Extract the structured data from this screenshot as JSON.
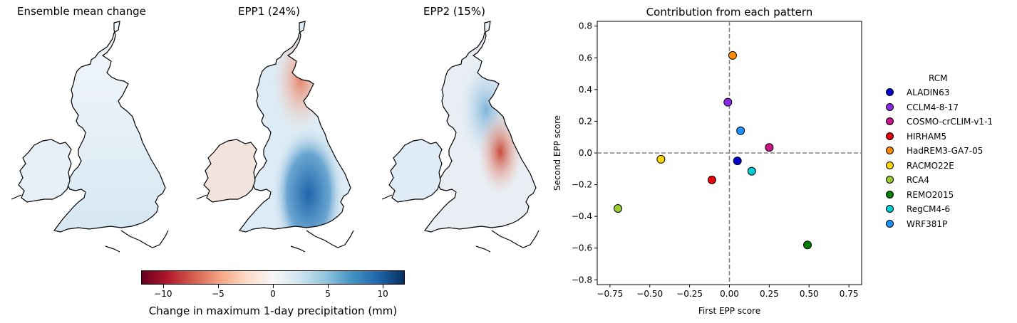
{
  "maps": [
    {
      "title": "Ensemble mean change",
      "variant": "mean"
    },
    {
      "title": "EPP1 (24%)",
      "variant": "epp1"
    },
    {
      "title": "EPP2 (15%)",
      "variant": "epp2"
    }
  ],
  "colorbar": {
    "label": "Change in maximum 1-day precipitation (mm)",
    "ticks": [
      "−10",
      "−5",
      "0",
      "5",
      "10"
    ],
    "tick_values": [
      -10,
      -5,
      0,
      5,
      10
    ],
    "range": [
      -12,
      12
    ],
    "colormap": "RdBu"
  },
  "legend": {
    "title": "RCM",
    "placement": "right"
  },
  "chart_data": [
    {
      "type": "scatter",
      "title": "Contribution from each pattern",
      "xlabel": "First EPP score",
      "ylabel": "Second EPP score",
      "xlim": [
        -0.83,
        0.83
      ],
      "ylim": [
        -0.83,
        0.83
      ],
      "xticks": [
        -0.75,
        -0.5,
        -0.25,
        0.0,
        0.25,
        0.5,
        0.75
      ],
      "xtick_labels": [
        "−0.75",
        "−0.50",
        "−0.25",
        "0.00",
        "0.25",
        "0.50",
        "0.75"
      ],
      "yticks": [
        -0.8,
        -0.6,
        -0.4,
        -0.2,
        0.0,
        0.2,
        0.4,
        0.6,
        0.8
      ],
      "ytick_labels": [
        "−0.8",
        "−0.6",
        "−0.4",
        "−0.2",
        "0.0",
        "0.2",
        "0.4",
        "0.6",
        "0.8"
      ],
      "reference_lines": {
        "x": 0,
        "y": 0,
        "style": "dashed",
        "color": "#808080"
      },
      "grid": false,
      "series": [
        {
          "name": "ALADIN63",
          "color": "#0000cc",
          "x": 0.05,
          "y": -0.05
        },
        {
          "name": "CCLM4-8-17",
          "color": "#8a2be2",
          "x": -0.01,
          "y": 0.32
        },
        {
          "name": "COSMO-crCLIM-v1-1",
          "color": "#c71585",
          "x": 0.25,
          "y": 0.035
        },
        {
          "name": "HIRHAM5",
          "color": "#e8000b",
          "x": -0.11,
          "y": -0.17
        },
        {
          "name": "HadREM3-GA7-05",
          "color": "#ff8c00",
          "x": 0.02,
          "y": 0.615
        },
        {
          "name": "RACMO22E",
          "color": "#ffd700",
          "x": -0.43,
          "y": -0.04
        },
        {
          "name": "RCA4",
          "color": "#9acd32",
          "x": -0.7,
          "y": -0.35
        },
        {
          "name": "REMO2015",
          "color": "#008000",
          "x": 0.49,
          "y": -0.58
        },
        {
          "name": "RegCM4-6",
          "color": "#00ced1",
          "x": 0.14,
          "y": -0.115
        },
        {
          "name": "WRF381P",
          "color": "#1e90ff",
          "x": 0.07,
          "y": 0.14
        }
      ]
    }
  ]
}
